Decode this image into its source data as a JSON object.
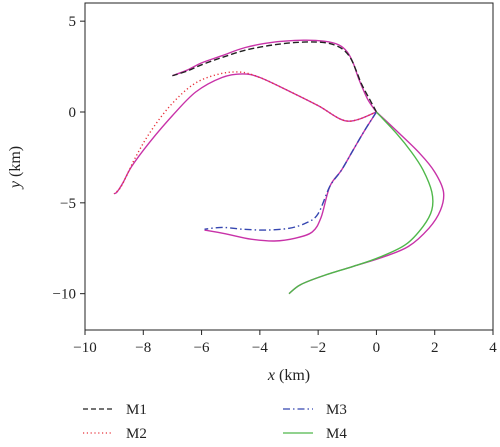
{
  "chart_data": {
    "type": "line",
    "xlabel": "x (km)",
    "xlabel_var": "x",
    "xlabel_unit": " (km)",
    "ylabel": "y (km)",
    "ylabel_var": "y",
    "ylabel_unit": " (km)",
    "xlim": [
      -10,
      4
    ],
    "ylim": [
      -12,
      6
    ],
    "xticks": [
      -10,
      -8,
      -6,
      -4,
      -2,
      0,
      2,
      4
    ],
    "yticks": [
      5,
      0,
      -5,
      -10
    ],
    "grid": false,
    "legend": "bottom",
    "colors": {
      "M1": "#222222",
      "M2": "#e8313a",
      "M3": "#3546b0",
      "M4": "#4fb84a",
      "reference": "#c832a8"
    },
    "series": [
      {
        "name": "M1",
        "style": "dashed",
        "x": [
          0,
          -0.2,
          -0.5,
          -0.7,
          -0.9,
          -1.2,
          -1.7,
          -2.5,
          -3.5,
          -4.5,
          -5.3,
          -6.0,
          -6.5,
          -7.0
        ],
        "y": [
          0,
          0.6,
          1.5,
          2.3,
          3.0,
          3.5,
          3.8,
          3.85,
          3.7,
          3.4,
          3.0,
          2.6,
          2.25,
          2.0
        ]
      },
      {
        "name": "M2",
        "style": "dotted",
        "x": [
          0,
          -1,
          -2,
          -3,
          -4,
          -4.7,
          -5.5,
          -6.3,
          -7.1,
          -7.8,
          -8.3,
          -8.6,
          -8.8,
          -9.0
        ],
        "y": [
          0,
          -0.5,
          0.35,
          1.15,
          1.9,
          2.2,
          2.05,
          1.5,
          0.3,
          -1.2,
          -2.6,
          -3.6,
          -4.2,
          -4.5
        ]
      },
      {
        "name": "M3",
        "style": "dashdot",
        "x": [
          0,
          -0.4,
          -0.8,
          -1.2,
          -1.6,
          -2.0,
          -2.4,
          -3.0,
          -3.8,
          -4.6,
          -5.3,
          -5.9
        ],
        "y": [
          0,
          -1.0,
          -2.1,
          -3.2,
          -4.1,
          -5.6,
          -6.1,
          -6.4,
          -6.5,
          -6.45,
          -6.35,
          -6.45
        ]
      },
      {
        "name": "M4",
        "style": "solid",
        "x": [
          0,
          0.7,
          1.2,
          1.6,
          1.9,
          1.9,
          1.6,
          1.0,
          0.1,
          -0.8,
          -1.8,
          -2.6,
          -3.0
        ],
        "y": [
          0,
          -1.2,
          -2.2,
          -3.2,
          -4.4,
          -5.4,
          -6.3,
          -7.3,
          -8.0,
          -8.5,
          -9.0,
          -9.5,
          -10.0
        ]
      }
    ],
    "reference_paths": [
      {
        "x": [
          0,
          -0.3,
          -0.6,
          -0.8,
          -1.0,
          -1.3,
          -1.8,
          -2.5,
          -3.5,
          -4.5,
          -5.3,
          -6.0,
          -6.5,
          -7.0
        ],
        "y": [
          0,
          0.7,
          1.8,
          2.7,
          3.3,
          3.7,
          3.9,
          3.95,
          3.85,
          3.55,
          3.1,
          2.7,
          2.3,
          2.0
        ]
      },
      {
        "x": [
          0,
          -1,
          -2,
          -3,
          -4,
          -4.6,
          -5.3,
          -6.2,
          -7.0,
          -7.8,
          -8.4,
          -8.7,
          -8.9,
          -9.0
        ],
        "y": [
          0,
          -0.5,
          0.35,
          1.15,
          1.9,
          2.1,
          1.9,
          1.1,
          -0.2,
          -1.7,
          -3.0,
          -3.9,
          -4.4,
          -4.5
        ]
      },
      {
        "x": [
          0,
          -0.4,
          -0.8,
          -1.2,
          -1.6,
          -1.9,
          -2.2,
          -2.8,
          -3.5,
          -4.3,
          -5.2,
          -5.9
        ],
        "y": [
          0,
          -1.0,
          -2.1,
          -3.2,
          -4.1,
          -5.8,
          -6.6,
          -6.95,
          -7.1,
          -7.0,
          -6.7,
          -6.5
        ]
      },
      {
        "x": [
          0,
          0.8,
          1.5,
          2.0,
          2.3,
          2.2,
          1.8,
          1.1,
          0.2,
          -0.8,
          -1.8,
          -2.6,
          -3.0
        ],
        "y": [
          0,
          -1.2,
          -2.3,
          -3.3,
          -4.4,
          -5.4,
          -6.4,
          -7.4,
          -8.0,
          -8.5,
          -9.0,
          -9.5,
          -10.0
        ]
      }
    ]
  },
  "legend": {
    "items": [
      {
        "label": "M1"
      },
      {
        "label": "M2"
      },
      {
        "label": "M3"
      },
      {
        "label": "M4"
      }
    ]
  }
}
